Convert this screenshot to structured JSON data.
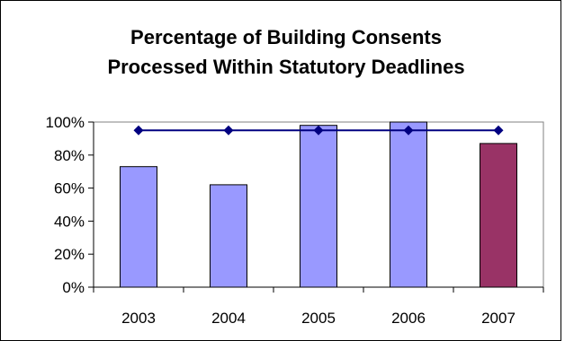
{
  "chart_data": {
    "type": "bar",
    "title_lines": [
      "Percentage of Building Consents",
      "Processed Within Statutory Deadlines"
    ],
    "xlabel": "",
    "ylabel": "",
    "categories": [
      "2003",
      "2004",
      "2005",
      "2006",
      "2007"
    ],
    "series": [
      {
        "type": "bar",
        "values": [
          73,
          62,
          98,
          100,
          87
        ],
        "colors": [
          "#9999ff",
          "#9999ff",
          "#9999ff",
          "#9999ff",
          "#993366"
        ]
      },
      {
        "type": "line",
        "values": [
          95,
          95,
          95,
          95,
          95
        ],
        "color": "#000080",
        "marker": "diamond"
      }
    ],
    "ylim": [
      0,
      100
    ],
    "yticks": [
      0,
      20,
      40,
      60,
      80,
      100
    ],
    "ytick_labels": [
      "0%",
      "20%",
      "40%",
      "60%",
      "80%",
      "100%"
    ],
    "grid": false,
    "legend": "none",
    "colors": {
      "bar": "#9999ff",
      "bar_highlight": "#993366",
      "target_line": "#000080",
      "plot_border": "#808080",
      "frame_border": "#000000"
    }
  }
}
